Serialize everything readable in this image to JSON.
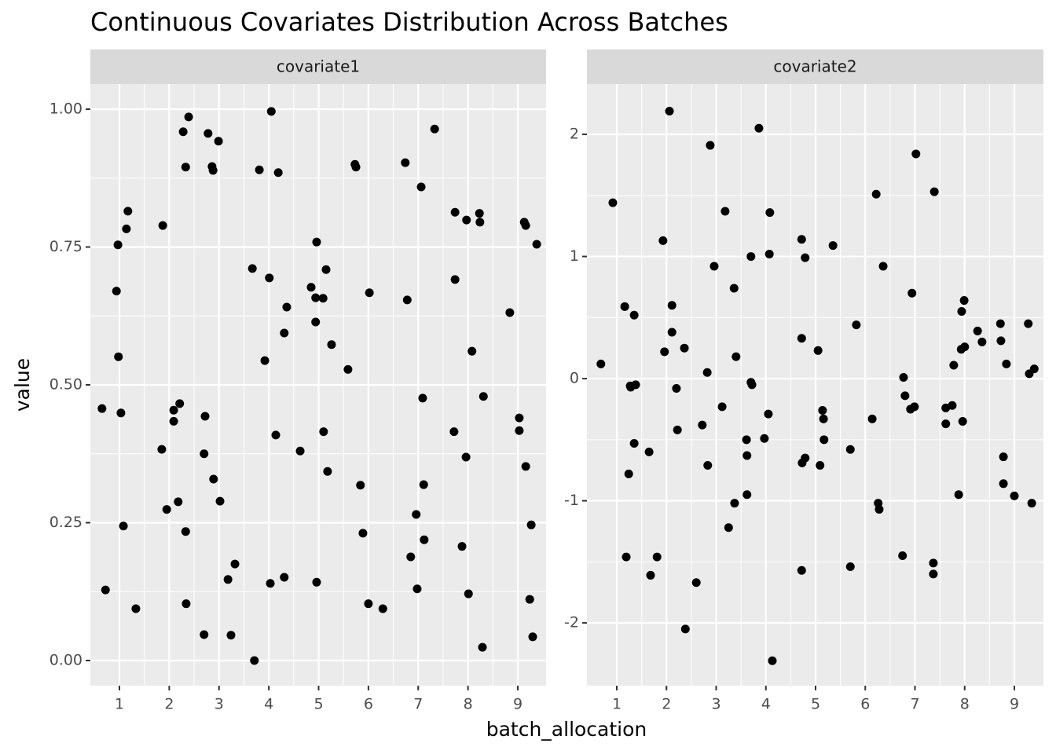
{
  "title": "Continuous Covariates Distribution Across Batches",
  "x_label": "batch_allocation",
  "y_label": "value",
  "chart_data": [
    {
      "type": "scatter",
      "facet_label": "covariate1",
      "color": "#000000",
      "grid": true,
      "xlim": [
        0.416,
        9.568
      ],
      "ylim": [
        -0.0456,
        1.0456
      ],
      "xticks": [
        1,
        2,
        3,
        4,
        5,
        6,
        7,
        8,
        9
      ],
      "yticks": [
        {
          "value": 0,
          "label": "0.00"
        },
        {
          "value": 0.25,
          "label": "0.25"
        },
        {
          "value": 0.5,
          "label": "0.50"
        },
        {
          "value": 0.75,
          "label": "0.75"
        },
        {
          "value": 1,
          "label": "1.00"
        }
      ],
      "x": [
        0.65,
        0.72,
        0.94,
        0.97,
        0.98,
        1.03,
        1.08,
        1.14,
        1.17,
        1.33,
        1.85,
        1.87,
        1.95,
        2.09,
        2.09,
        2.18,
        2.21,
        2.28,
        2.33,
        2.33,
        2.34,
        2.39,
        2.7,
        2.7,
        2.72,
        2.78,
        2.86,
        2.88,
        2.89,
        2.99,
        3.02,
        3.18,
        3.24,
        3.32,
        3.67,
        3.71,
        3.81,
        3.92,
        4.01,
        4.03,
        4.05,
        4.14,
        4.19,
        4.31,
        4.31,
        4.36,
        4.63,
        4.85,
        4.94,
        4.96,
        4.96,
        4.94,
        5.09,
        5.1,
        5.15,
        5.18,
        5.26,
        5.59,
        5.73,
        5.75,
        5.84,
        5.89,
        6.0,
        6.02,
        6.29,
        6.74,
        6.78,
        6.85,
        6.96,
        6.98,
        7.06,
        7.09,
        7.11,
        7.12,
        7.33,
        7.74,
        7.74,
        7.72,
        7.88,
        7.96,
        7.97,
        8.01,
        8.08,
        8.23,
        8.24,
        8.29,
        8.31,
        8.84,
        9.03,
        9.03,
        9.13,
        9.16,
        9.16,
        9.24,
        9.27,
        9.3,
        9.38
      ],
      "values": [
        0.457,
        0.128,
        0.67,
        0.754,
        0.551,
        0.449,
        0.244,
        0.783,
        0.815,
        0.094,
        0.383,
        0.789,
        0.274,
        0.454,
        0.434,
        0.288,
        0.466,
        0.959,
        0.895,
        0.234,
        0.103,
        0.986,
        0.047,
        0.375,
        0.443,
        0.956,
        0.896,
        0.889,
        0.329,
        0.942,
        0.289,
        0.147,
        0.046,
        0.175,
        0.711,
        0.0,
        0.89,
        0.544,
        0.694,
        0.14,
        0.996,
        0.409,
        0.885,
        0.151,
        0.594,
        0.641,
        0.38,
        0.677,
        0.658,
        0.759,
        0.142,
        0.614,
        0.657,
        0.415,
        0.709,
        0.343,
        0.573,
        0.528,
        0.9,
        0.895,
        0.318,
        0.231,
        0.103,
        0.667,
        0.094,
        0.903,
        0.654,
        0.188,
        0.265,
        0.13,
        0.859,
        0.476,
        0.319,
        0.219,
        0.964,
        0.813,
        0.691,
        0.415,
        0.207,
        0.369,
        0.799,
        0.121,
        0.561,
        0.811,
        0.795,
        0.024,
        0.479,
        0.631,
        0.44,
        0.417,
        0.795,
        0.789,
        0.352,
        0.111,
        0.246,
        0.043,
        0.755
      ]
    },
    {
      "type": "scatter",
      "facet_label": "covariate2",
      "color": "#000000",
      "grid": true,
      "xlim": [
        0.399,
        9.585
      ],
      "ylim": [
        -2.514,
        2.412
      ],
      "xticks": [
        1,
        2,
        3,
        4,
        5,
        6,
        7,
        8,
        9
      ],
      "yticks": [
        -2,
        -1,
        0,
        1,
        2
      ],
      "x": [
        0.68,
        0.92,
        1.16,
        1.19,
        1.24,
        1.27,
        1.28,
        1.35,
        1.35,
        1.38,
        1.65,
        1.68,
        1.81,
        1.93,
        1.96,
        2.06,
        2.11,
        2.11,
        2.2,
        2.22,
        2.36,
        2.38,
        2.6,
        2.72,
        2.82,
        2.83,
        2.88,
        2.96,
        3.12,
        3.18,
        3.25,
        3.36,
        3.37,
        3.4,
        3.61,
        3.62,
        3.62,
        3.7,
        3.7,
        3.72,
        3.86,
        3.97,
        4.05,
        4.07,
        4.08,
        4.13,
        4.72,
        4.72,
        4.72,
        4.73,
        4.79,
        4.79,
        5.05,
        5.09,
        5.14,
        5.16,
        5.17,
        5.35,
        5.7,
        5.7,
        5.82,
        6.14,
        6.22,
        6.26,
        6.28,
        6.36,
        6.75,
        6.77,
        6.8,
        6.91,
        6.94,
        6.99,
        7.02,
        7.37,
        7.37,
        7.39,
        7.62,
        7.62,
        7.75,
        7.78,
        7.88,
        7.94,
        7.96,
        7.99,
        7.93,
        8.0,
        8.26,
        8.35,
        8.72,
        8.73,
        8.78,
        8.78,
        8.84,
        9.0,
        9.28,
        9.3,
        9.35,
        9.4
      ],
      "values": [
        0.12,
        1.44,
        0.59,
        -1.46,
        -0.78,
        -0.06,
        -0.07,
        0.52,
        -0.53,
        -0.05,
        -0.6,
        -1.61,
        -1.46,
        1.13,
        0.22,
        2.19,
        0.6,
        0.38,
        -0.08,
        -0.42,
        0.25,
        -2.05,
        -1.67,
        -0.38,
        0.05,
        -0.71,
        1.91,
        0.92,
        -0.23,
        1.37,
        -1.22,
        0.74,
        -1.02,
        0.18,
        -0.5,
        -0.63,
        -0.95,
        1.0,
        -0.03,
        -0.05,
        2.05,
        -0.49,
        -0.29,
        1.02,
        1.36,
        -2.31,
        1.14,
        0.33,
        -1.57,
        -0.69,
        0.99,
        -0.65,
        0.23,
        -0.71,
        -0.26,
        -0.33,
        -0.5,
        1.09,
        -0.58,
        -1.54,
        0.44,
        -0.33,
        1.51,
        -1.02,
        -1.07,
        0.92,
        -1.45,
        0.01,
        -0.14,
        -0.25,
        0.7,
        -0.23,
        1.84,
        -1.51,
        -1.6,
        1.53,
        -0.24,
        -0.37,
        -0.22,
        0.11,
        -0.95,
        0.55,
        -0.35,
        0.64,
        0.24,
        0.26,
        0.39,
        0.3,
        0.45,
        0.31,
        -0.64,
        -0.86,
        0.12,
        -0.96,
        0.45,
        0.04,
        -1.02,
        0.08
      ]
    }
  ]
}
